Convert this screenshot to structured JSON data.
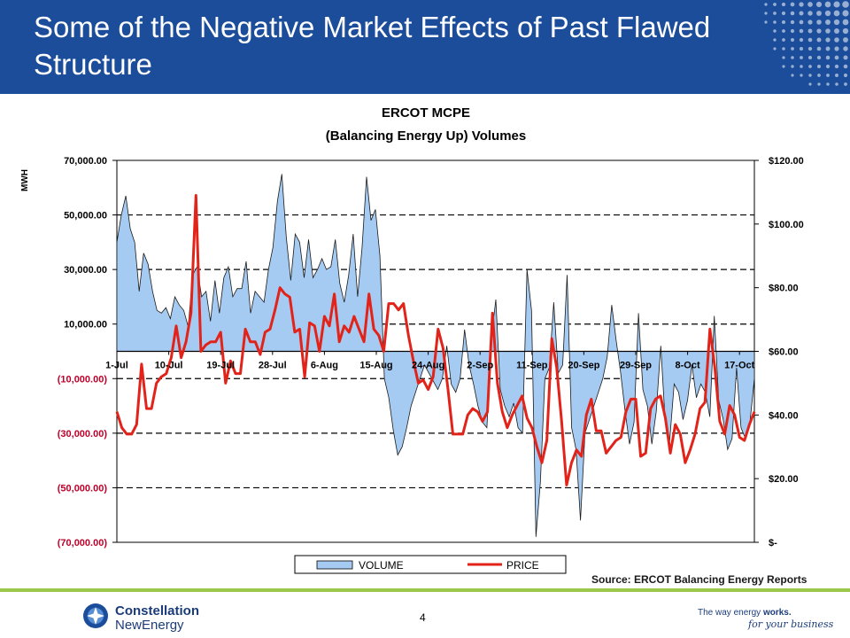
{
  "header": {
    "title": "Some of the Negative Market Effects of Past Flawed Structure"
  },
  "chart_data": {
    "type": "area",
    "title": "ERCOT MCPE",
    "subtitle": "(Balancing Energy Up) Volumes",
    "ylabel": "MWH",
    "y_left": {
      "ylim": [
        -70000,
        70000
      ],
      "ticks": [
        70000,
        50000,
        30000,
        10000,
        -10000,
        -30000,
        -50000,
        -70000
      ],
      "tick_labels": [
        "70,000.00",
        "50,000.00",
        "30,000.00",
        "10,000.00",
        "(10,000.00)",
        "(30,000.00)",
        "(50,000.00)",
        "(70,000.00)"
      ]
    },
    "y_right": {
      "ylim": [
        0,
        120
      ],
      "ticks": [
        120,
        100,
        80,
        60,
        40,
        20,
        0
      ],
      "tick_labels": [
        "$120.00",
        "$100.00",
        "$80.00",
        "$60.00",
        "$40.00",
        "$20.00",
        "$-"
      ]
    },
    "x_tick_labels": [
      "1-Jul",
      "10-Jul",
      "19-Jul",
      "28-Jul",
      "6-Aug",
      "15-Aug",
      "24-Aug",
      "2-Sep",
      "11-Sep",
      "20-Sep",
      "29-Sep",
      "8-Oct",
      "17-Oct"
    ],
    "grid": "dashed horizontal",
    "legend_position": "bottom",
    "series": [
      {
        "name": "VOLUME",
        "axis": "left",
        "style": "area",
        "color": "#a6cbf2",
        "points": [
          [
            0,
            40000
          ],
          [
            1,
            50000
          ],
          [
            2,
            57000
          ],
          [
            3,
            45000
          ],
          [
            4,
            40000
          ],
          [
            5,
            22000
          ],
          [
            6,
            36000
          ],
          [
            7,
            32000
          ],
          [
            8,
            22000
          ],
          [
            9,
            15000
          ],
          [
            10,
            14000
          ],
          [
            11,
            16000
          ],
          [
            12,
            12000
          ],
          [
            13,
            20000
          ],
          [
            14,
            17000
          ],
          [
            15,
            15000
          ],
          [
            16,
            9000
          ],
          [
            17,
            28000
          ],
          [
            18,
            31000
          ],
          [
            19,
            20000
          ],
          [
            20,
            22000
          ],
          [
            21,
            11000
          ],
          [
            22,
            26000
          ],
          [
            23,
            14000
          ],
          [
            24,
            27000
          ],
          [
            25,
            31000
          ],
          [
            26,
            20000
          ],
          [
            27,
            23000
          ],
          [
            28,
            23000
          ],
          [
            29,
            33000
          ],
          [
            30,
            14000
          ],
          [
            31,
            22000
          ],
          [
            32,
            20000
          ],
          [
            33,
            18000
          ],
          [
            34,
            30000
          ],
          [
            35,
            38000
          ],
          [
            36,
            55000
          ],
          [
            37,
            65000
          ],
          [
            38,
            42000
          ],
          [
            39,
            26000
          ],
          [
            40,
            43000
          ],
          [
            41,
            40000
          ],
          [
            42,
            27000
          ],
          [
            43,
            41000
          ],
          [
            44,
            27000
          ],
          [
            45,
            30000
          ],
          [
            46,
            34000
          ],
          [
            47,
            30000
          ],
          [
            48,
            31000
          ],
          [
            49,
            41000
          ],
          [
            50,
            25000
          ],
          [
            51,
            18000
          ],
          [
            52,
            28000
          ],
          [
            53,
            43000
          ],
          [
            54,
            20000
          ],
          [
            55,
            38000
          ],
          [
            56,
            64000
          ],
          [
            57,
            48000
          ],
          [
            58,
            52000
          ],
          [
            59,
            35000
          ],
          [
            60,
            -10000
          ],
          [
            61,
            -17000
          ],
          [
            62,
            -29000
          ],
          [
            63,
            -38000
          ],
          [
            64,
            -35000
          ],
          [
            65,
            -28000
          ],
          [
            66,
            -20000
          ],
          [
            67,
            -15000
          ],
          [
            68,
            -10000
          ],
          [
            69,
            -5000
          ],
          [
            70,
            -8000
          ],
          [
            71,
            -11000
          ],
          [
            72,
            -14000
          ],
          [
            73,
            -10000
          ],
          [
            74,
            2000
          ],
          [
            75,
            -12000
          ],
          [
            76,
            -15000
          ],
          [
            77,
            -10000
          ],
          [
            78,
            8000
          ],
          [
            79,
            -5000
          ],
          [
            80,
            -12000
          ],
          [
            81,
            -20000
          ],
          [
            82,
            -26000
          ],
          [
            83,
            -28000
          ],
          [
            84,
            5000
          ],
          [
            85,
            19000
          ],
          [
            86,
            -14000
          ],
          [
            87,
            -20000
          ],
          [
            88,
            -24000
          ],
          [
            89,
            -19000
          ],
          [
            90,
            -28000
          ],
          [
            91,
            -30000
          ],
          [
            92,
            30000
          ],
          [
            93,
            15000
          ],
          [
            94,
            -68000
          ],
          [
            95,
            -48000
          ],
          [
            96,
            -10000
          ],
          [
            97,
            -6000
          ],
          [
            98,
            18000
          ],
          [
            99,
            -8000
          ],
          [
            100,
            -5000
          ],
          [
            101,
            28000
          ],
          [
            102,
            -28000
          ],
          [
            103,
            -36000
          ],
          [
            104,
            -62000
          ],
          [
            105,
            -30000
          ],
          [
            106,
            -25000
          ],
          [
            107,
            -20000
          ],
          [
            108,
            -15000
          ],
          [
            109,
            -10000
          ],
          [
            110,
            -2000
          ],
          [
            111,
            17000
          ],
          [
            112,
            4000
          ],
          [
            113,
            -8000
          ],
          [
            114,
            -22000
          ],
          [
            115,
            -34000
          ],
          [
            116,
            -26000
          ],
          [
            117,
            14000
          ],
          [
            118,
            -14000
          ],
          [
            119,
            -20000
          ],
          [
            120,
            -34000
          ],
          [
            121,
            -22000
          ],
          [
            122,
            2000
          ],
          [
            123,
            -26000
          ],
          [
            124,
            -33000
          ],
          [
            125,
            -12000
          ],
          [
            126,
            -15000
          ],
          [
            127,
            -25000
          ],
          [
            128,
            -18000
          ],
          [
            129,
            -5000
          ],
          [
            130,
            -17000
          ],
          [
            131,
            -12000
          ],
          [
            132,
            -15000
          ],
          [
            133,
            -24000
          ],
          [
            134,
            13000
          ],
          [
            135,
            -18000
          ],
          [
            136,
            -25000
          ],
          [
            137,
            -36000
          ],
          [
            138,
            -32000
          ],
          [
            139,
            -6000
          ],
          [
            140,
            -28000
          ],
          [
            141,
            -32000
          ],
          [
            142,
            -26000
          ],
          [
            143,
            -10000
          ]
        ]
      },
      {
        "name": "PRICE",
        "axis": "right",
        "style": "line",
        "color": "#e2231a",
        "points": [
          [
            0,
            41
          ],
          [
            1,
            36
          ],
          [
            2,
            34
          ],
          [
            3,
            34
          ],
          [
            4,
            37
          ],
          [
            5,
            56
          ],
          [
            6,
            42
          ],
          [
            7,
            42
          ],
          [
            8,
            50
          ],
          [
            9,
            52
          ],
          [
            10,
            53
          ],
          [
            11,
            58
          ],
          [
            12,
            68
          ],
          [
            13,
            58
          ],
          [
            14,
            63
          ],
          [
            15,
            72
          ],
          [
            16,
            109
          ],
          [
            17,
            60
          ],
          [
            18,
            62
          ],
          [
            19,
            63
          ],
          [
            20,
            63
          ],
          [
            21,
            66
          ],
          [
            22,
            50
          ],
          [
            23,
            57
          ],
          [
            24,
            53
          ],
          [
            25,
            53
          ],
          [
            26,
            67
          ],
          [
            27,
            63
          ],
          [
            28,
            63
          ],
          [
            29,
            59
          ],
          [
            30,
            66
          ],
          [
            31,
            67
          ],
          [
            32,
            73
          ],
          [
            33,
            80
          ],
          [
            34,
            78
          ],
          [
            35,
            77
          ],
          [
            36,
            66
          ],
          [
            37,
            67
          ],
          [
            38,
            52
          ],
          [
            39,
            69
          ],
          [
            40,
            68
          ],
          [
            41,
            60
          ],
          [
            42,
            71
          ],
          [
            43,
            68
          ],
          [
            44,
            78
          ],
          [
            45,
            63
          ],
          [
            46,
            68
          ],
          [
            47,
            66
          ],
          [
            48,
            71
          ],
          [
            49,
            67
          ],
          [
            50,
            63
          ],
          [
            51,
            78
          ],
          [
            52,
            67
          ],
          [
            53,
            65
          ],
          [
            54,
            60
          ],
          [
            55,
            75
          ],
          [
            56,
            75
          ],
          [
            57,
            73
          ],
          [
            58,
            75
          ],
          [
            59,
            65
          ],
          [
            60,
            57
          ],
          [
            61,
            50
          ],
          [
            62,
            51
          ],
          [
            63,
            48
          ],
          [
            64,
            52
          ],
          [
            65,
            67
          ],
          [
            66,
            61
          ],
          [
            67,
            48
          ],
          [
            68,
            34
          ],
          [
            69,
            34
          ],
          [
            70,
            34
          ],
          [
            71,
            40
          ],
          [
            72,
            42
          ],
          [
            73,
            41
          ],
          [
            74,
            38
          ],
          [
            75,
            41
          ],
          [
            76,
            72
          ],
          [
            77,
            50
          ],
          [
            78,
            41
          ],
          [
            79,
            36
          ],
          [
            80,
            40
          ],
          [
            81,
            43
          ],
          [
            82,
            46
          ],
          [
            83,
            39
          ],
          [
            84,
            36
          ],
          [
            85,
            30
          ],
          [
            86,
            25
          ],
          [
            87,
            32
          ],
          [
            88,
            64
          ],
          [
            89,
            55
          ],
          [
            90,
            38
          ],
          [
            91,
            18
          ],
          [
            92,
            25
          ],
          [
            93,
            29
          ],
          [
            94,
            27
          ],
          [
            95,
            40
          ],
          [
            96,
            45
          ],
          [
            97,
            35
          ],
          [
            98,
            35
          ],
          [
            99,
            28
          ],
          [
            100,
            30
          ],
          [
            101,
            32
          ],
          [
            102,
            33
          ],
          [
            103,
            41
          ],
          [
            104,
            45
          ],
          [
            105,
            45
          ],
          [
            106,
            27
          ],
          [
            107,
            28
          ],
          [
            108,
            42
          ],
          [
            109,
            45
          ],
          [
            110,
            46
          ],
          [
            111,
            39
          ],
          [
            112,
            28
          ],
          [
            113,
            37
          ],
          [
            114,
            34
          ],
          [
            115,
            25
          ],
          [
            116,
            29
          ],
          [
            117,
            34
          ],
          [
            118,
            42
          ],
          [
            119,
            44
          ],
          [
            120,
            67
          ],
          [
            121,
            55
          ],
          [
            122,
            38
          ],
          [
            123,
            34
          ],
          [
            124,
            43
          ],
          [
            125,
            40
          ],
          [
            126,
            33
          ],
          [
            127,
            32
          ],
          [
            128,
            37
          ],
          [
            129,
            41
          ]
        ]
      }
    ],
    "source": "Source:  ERCOT Balancing Energy Reports"
  },
  "footer": {
    "page_number": "4",
    "logo_name": "Constellation",
    "logo_sub": "NewEnergy",
    "tagline_prefix": "The way energy ",
    "tagline_bold": "works.",
    "tagline_script": "for your business"
  }
}
